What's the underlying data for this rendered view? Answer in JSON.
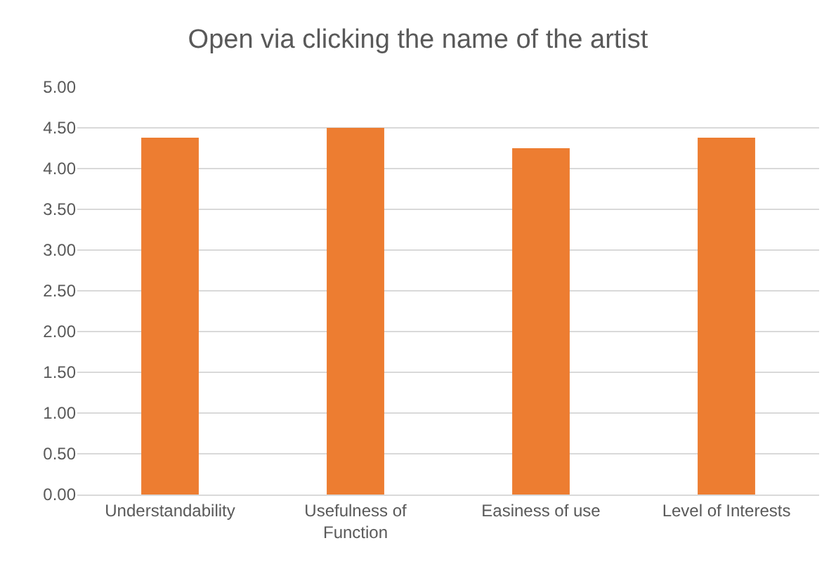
{
  "chart_data": {
    "type": "bar",
    "title": "Open via clicking the name of the artist",
    "categories": [
      "Understandability",
      "Usefulness of Function",
      "Easiness of use",
      "Level of Interests"
    ],
    "values": [
      4.38,
      4.5,
      4.25,
      4.38
    ],
    "color": "#ed7d31",
    "ylim": [
      0,
      5
    ],
    "yticks": [
      {
        "value": 0,
        "label": "0.00"
      },
      {
        "value": 0.5,
        "label": "0.50"
      },
      {
        "value": 1,
        "label": "1.00"
      },
      {
        "value": 1.5,
        "label": "1.50"
      },
      {
        "value": 2,
        "label": "2.00"
      },
      {
        "value": 2.5,
        "label": "2.50"
      },
      {
        "value": 3,
        "label": "3.00"
      },
      {
        "value": 3.5,
        "label": "3.50"
      },
      {
        "value": 4,
        "label": "4.00"
      },
      {
        "value": 4.5,
        "label": "4.50"
      },
      {
        "value": 5,
        "label": "5.00"
      }
    ],
    "grid": "y",
    "legend": false
  }
}
